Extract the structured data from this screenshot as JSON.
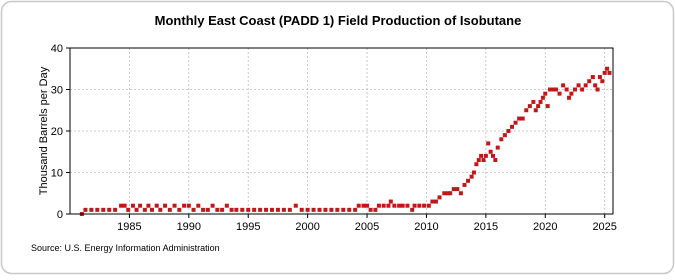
{
  "chart_data": {
    "type": "scatter",
    "title": "Monthly East Coast (PADD 1) Field Production of Isobutane",
    "y_label": "Thousand Barrels per Day",
    "source": "Source: U.S. Energy Information Administration",
    "color": "#c0171b",
    "grid": true,
    "xlim": [
      1980,
      2025.7
    ],
    "xticks": [
      1985,
      1990,
      1995,
      2000,
      2005,
      2010,
      2015,
      2020,
      2025
    ],
    "ylim": [
      0,
      40
    ],
    "yticks": [
      0,
      10,
      20,
      30,
      40
    ],
    "x": [
      1981.0,
      1981.3,
      1981.8,
      1982.3,
      1982.8,
      1983.3,
      1983.8,
      1984.3,
      1984.6,
      1984.9,
      1985.3,
      1985.6,
      1985.9,
      1986.3,
      1986.6,
      1986.9,
      1987.3,
      1987.6,
      1988.0,
      1988.4,
      1988.8,
      1989.2,
      1989.6,
      1990.0,
      1990.4,
      1990.8,
      1991.2,
      1991.6,
      1992.0,
      1992.4,
      1992.8,
      1993.2,
      1993.6,
      1994.0,
      1994.5,
      1995.0,
      1995.5,
      1996.0,
      1996.5,
      1997.0,
      1997.5,
      1998.0,
      1998.5,
      1999.0,
      1999.5,
      2000.0,
      2000.5,
      2001.0,
      2001.5,
      2002.0,
      2002.5,
      2003.0,
      2003.5,
      2004.0,
      2004.3,
      2004.7,
      2005.0,
      2005.3,
      2005.7,
      2006.0,
      2006.4,
      2006.8,
      2007.0,
      2007.3,
      2007.7,
      2008.0,
      2008.4,
      2008.8,
      2009.0,
      2009.4,
      2009.8,
      2010.2,
      2010.5,
      2010.8,
      2011.1,
      2011.5,
      2011.8,
      2012.0,
      2012.3,
      2012.6,
      2012.9,
      2013.2,
      2013.5,
      2013.8,
      2014.0,
      2014.2,
      2014.4,
      2014.6,
      2014.8,
      2015.0,
      2015.2,
      2015.4,
      2015.6,
      2015.8,
      2016.0,
      2016.3,
      2016.6,
      2016.9,
      2017.2,
      2017.5,
      2017.8,
      2018.1,
      2018.4,
      2018.7,
      2019.0,
      2019.2,
      2019.4,
      2019.6,
      2019.8,
      2020.0,
      2020.2,
      2020.4,
      2020.6,
      2020.9,
      2021.2,
      2021.5,
      2021.8,
      2022.0,
      2022.2,
      2022.5,
      2022.8,
      2023.1,
      2023.4,
      2023.7,
      2024.0,
      2024.2,
      2024.4,
      2024.6,
      2024.8,
      2025.0,
      2025.2,
      2025.4
    ],
    "values": [
      0,
      1,
      1,
      1,
      1,
      1,
      1,
      2,
      2,
      1,
      2,
      1,
      2,
      1,
      2,
      1,
      2,
      1,
      2,
      1,
      2,
      1,
      2,
      2,
      1,
      2,
      1,
      1,
      2,
      1,
      1,
      2,
      1,
      1,
      1,
      1,
      1,
      1,
      1,
      1,
      1,
      1,
      1,
      2,
      1,
      1,
      1,
      1,
      1,
      1,
      1,
      1,
      1,
      1,
      2,
      2,
      2,
      1,
      1,
      2,
      2,
      2,
      3,
      2,
      2,
      2,
      2,
      1,
      2,
      2,
      2,
      2,
      3,
      3,
      4,
      5,
      5,
      5,
      6,
      6,
      5,
      7,
      8,
      9,
      10,
      12,
      13,
      14,
      13,
      14,
      17,
      15,
      14,
      13,
      16,
      18,
      19,
      20,
      21,
      22,
      23,
      23,
      25,
      26,
      27,
      25,
      26,
      27,
      28,
      29,
      26,
      30,
      30,
      30,
      29,
      31,
      30,
      28,
      29,
      30,
      31,
      30,
      31,
      32,
      33,
      31,
      30,
      33,
      32,
      34,
      35,
      34
    ]
  }
}
